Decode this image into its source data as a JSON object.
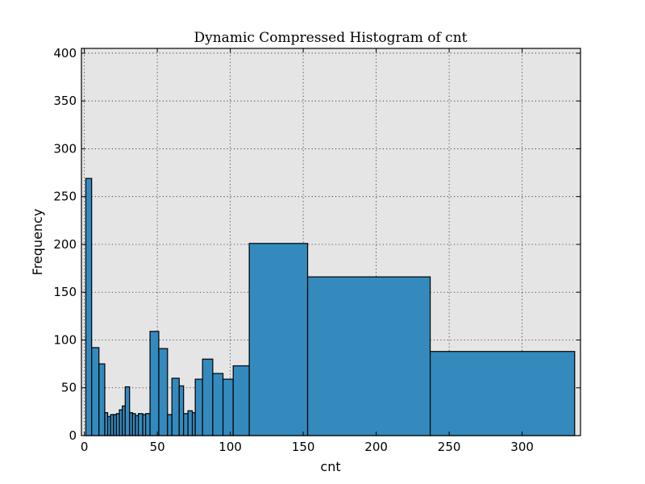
{
  "chart_data": {
    "type": "bar",
    "title": "Dynamic Compressed Histogram of cnt",
    "xlabel": "cnt",
    "ylabel": "Frequency",
    "xlim": [
      -2,
      340
    ],
    "ylim": [
      0,
      405
    ],
    "grid": true,
    "background_color": "#E5E5E5",
    "bar_color": "#348ABD",
    "x_ticks": [
      0,
      50,
      100,
      150,
      200,
      250,
      300
    ],
    "y_ticks": [
      0,
      50,
      100,
      150,
      200,
      250,
      300,
      350,
      400
    ],
    "bins": [
      {
        "start": 1,
        "end": 5,
        "value": 269
      },
      {
        "start": 5,
        "end": 10,
        "value": 92
      },
      {
        "start": 10,
        "end": 14,
        "value": 75
      },
      {
        "start": 14,
        "end": 16,
        "value": 24
      },
      {
        "start": 16,
        "end": 18,
        "value": 20
      },
      {
        "start": 18,
        "end": 20,
        "value": 22
      },
      {
        "start": 20,
        "end": 22,
        "value": 22
      },
      {
        "start": 22,
        "end": 24,
        "value": 23
      },
      {
        "start": 24,
        "end": 26,
        "value": 27
      },
      {
        "start": 26,
        "end": 28,
        "value": 31
      },
      {
        "start": 28,
        "end": 31,
        "value": 51
      },
      {
        "start": 31,
        "end": 33,
        "value": 24
      },
      {
        "start": 33,
        "end": 35,
        "value": 23
      },
      {
        "start": 35,
        "end": 37,
        "value": 21
      },
      {
        "start": 37,
        "end": 40,
        "value": 23
      },
      {
        "start": 40,
        "end": 42,
        "value": 22
      },
      {
        "start": 42,
        "end": 45,
        "value": 23
      },
      {
        "start": 45,
        "end": 51,
        "value": 109
      },
      {
        "start": 51,
        "end": 57,
        "value": 91
      },
      {
        "start": 57,
        "end": 60,
        "value": 22
      },
      {
        "start": 60,
        "end": 65,
        "value": 60
      },
      {
        "start": 65,
        "end": 68,
        "value": 52
      },
      {
        "start": 68,
        "end": 71,
        "value": 23
      },
      {
        "start": 71,
        "end": 74,
        "value": 26
      },
      {
        "start": 74,
        "end": 76,
        "value": 24
      },
      {
        "start": 76,
        "end": 81,
        "value": 59
      },
      {
        "start": 81,
        "end": 88,
        "value": 80
      },
      {
        "start": 88,
        "end": 95,
        "value": 65
      },
      {
        "start": 95,
        "end": 102,
        "value": 59
      },
      {
        "start": 102,
        "end": 113,
        "value": 73
      },
      {
        "start": 113,
        "end": 153,
        "value": 201
      },
      {
        "start": 153,
        "end": 237,
        "value": 166
      },
      {
        "start": 237,
        "end": 336,
        "value": 88
      }
    ]
  }
}
